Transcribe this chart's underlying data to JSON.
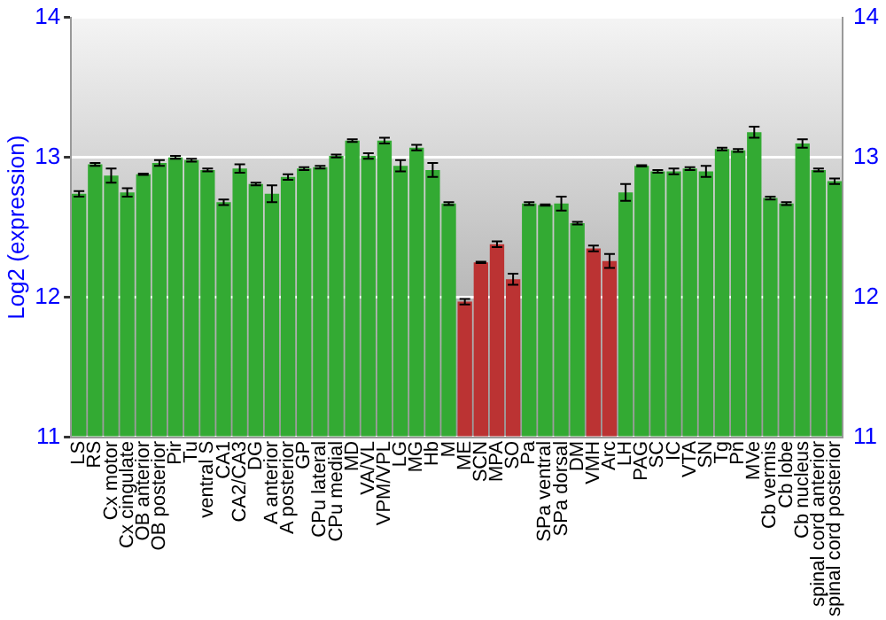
{
  "chart_data": {
    "type": "bar",
    "ylabel": "Log2 (expression)",
    "categories": [
      "LS",
      "RS",
      "Cx motor",
      "Cx cingulate",
      "OB anterior",
      "OB posterior",
      "Pir",
      "Tu",
      "ventral S",
      "CA1",
      "CA2/CA3",
      "DG",
      "A anterior",
      "A posterior",
      "GP",
      "CPu lateral",
      "CPu medial",
      "MD",
      "VA/VL",
      "VPM/VPL",
      "LG",
      "MG",
      "Hb",
      "M",
      "ME",
      "SCN",
      "MPA",
      "SO",
      "Pa",
      "SPa ventral",
      "SPa dorsal",
      "DM",
      "VMH",
      "Arc",
      "LH",
      "PAG",
      "SC",
      "IC",
      "VTA",
      "SN",
      "Tg",
      "Pn",
      "MVe",
      "Cb vermis",
      "Cb lobe",
      "Cb nucleus",
      "spinal cord anterior",
      "spinal cord posterior"
    ],
    "values": [
      12.74,
      12.95,
      12.87,
      12.75,
      12.88,
      12.96,
      13.0,
      12.98,
      12.91,
      12.68,
      12.92,
      12.81,
      12.74,
      12.86,
      12.92,
      12.93,
      13.01,
      13.12,
      13.01,
      13.12,
      12.94,
      13.07,
      12.91,
      12.67,
      11.97,
      12.25,
      12.38,
      12.13,
      12.67,
      12.66,
      12.67,
      12.53,
      12.35,
      12.26,
      12.75,
      12.94,
      12.9,
      12.9,
      12.92,
      12.9,
      13.06,
      13.05,
      13.18,
      12.71,
      12.67,
      13.1,
      12.91,
      12.83
    ],
    "errors": [
      0.02,
      0.01,
      0.05,
      0.03,
      0.005,
      0.02,
      0.01,
      0.01,
      0.01,
      0.02,
      0.03,
      0.01,
      0.06,
      0.02,
      0.01,
      0.01,
      0.01,
      0.01,
      0.02,
      0.02,
      0.04,
      0.02,
      0.05,
      0.01,
      0.02,
      0.005,
      0.02,
      0.04,
      0.01,
      0.005,
      0.05,
      0.01,
      0.02,
      0.05,
      0.06,
      0.005,
      0.01,
      0.02,
      0.01,
      0.04,
      0.01,
      0.01,
      0.04,
      0.01,
      0.01,
      0.03,
      0.01,
      0.02
    ],
    "colors": [
      "#33aa33",
      "#33aa33",
      "#33aa33",
      "#33aa33",
      "#33aa33",
      "#33aa33",
      "#33aa33",
      "#33aa33",
      "#33aa33",
      "#33aa33",
      "#33aa33",
      "#33aa33",
      "#33aa33",
      "#33aa33",
      "#33aa33",
      "#33aa33",
      "#33aa33",
      "#33aa33",
      "#33aa33",
      "#33aa33",
      "#33aa33",
      "#33aa33",
      "#33aa33",
      "#33aa33",
      "#bb3333",
      "#bb3333",
      "#bb3333",
      "#bb3333",
      "#33aa33",
      "#33aa33",
      "#33aa33",
      "#33aa33",
      "#bb3333",
      "#bb3333",
      "#33aa33",
      "#33aa33",
      "#33aa33",
      "#33aa33",
      "#33aa33",
      "#33aa33",
      "#33aa33",
      "#33aa33",
      "#33aa33",
      "#33aa33",
      "#33aa33",
      "#33aa33",
      "#33aa33",
      "#33aa33"
    ],
    "ylim": [
      11,
      14
    ],
    "yticks": [
      11,
      12,
      13,
      14
    ],
    "y2lim": [
      11,
      14
    ],
    "y2ticks": [
      11,
      12,
      13,
      14
    ],
    "grid": "y"
  }
}
